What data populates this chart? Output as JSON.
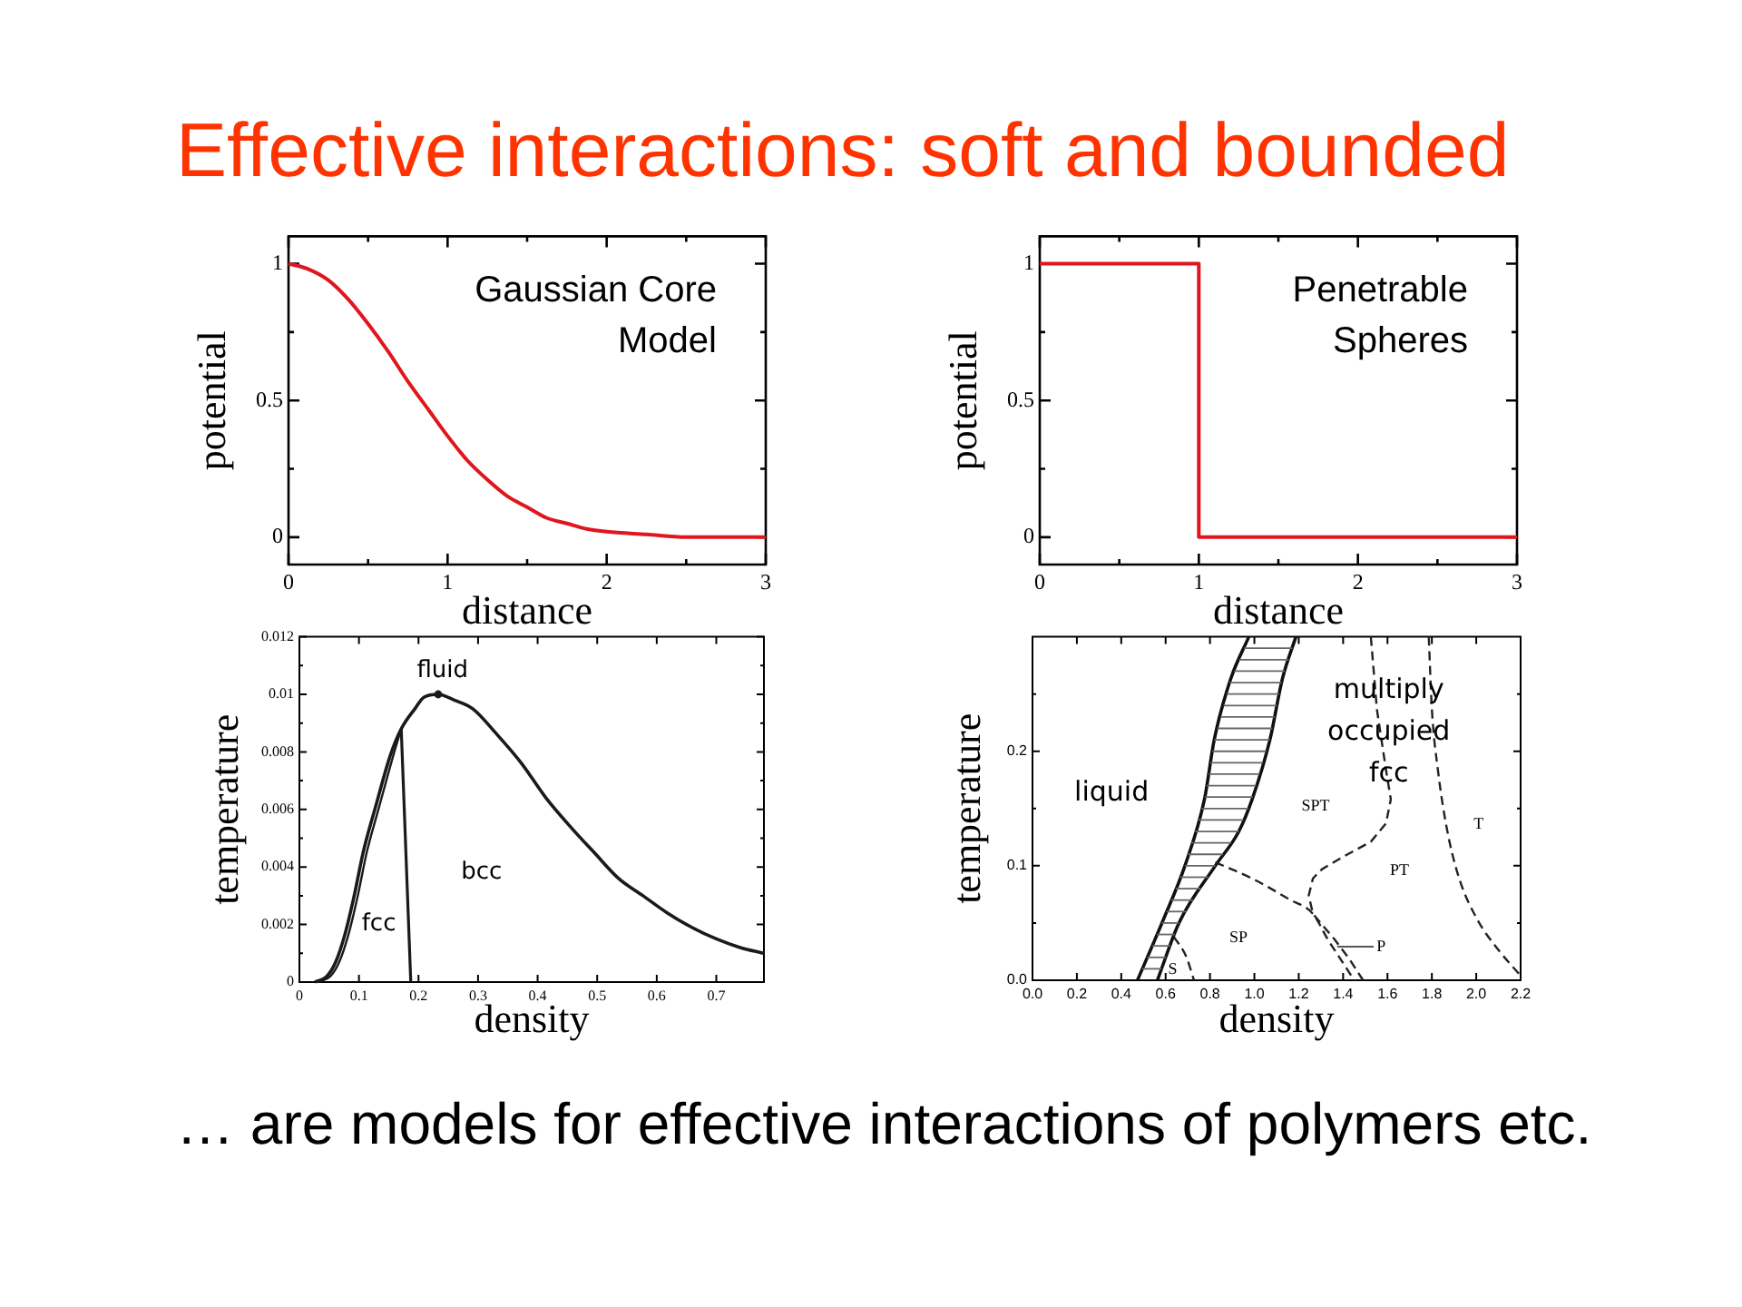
{
  "chart_data": [
    {
      "type": "other",
      "title": "Effective interactions: soft and bounded"
    },
    {
      "type": "line",
      "title": "Gaussian Core Model",
      "xlabel": "distance",
      "ylabel": "potential",
      "xlim": [
        0,
        3
      ],
      "ylim": [
        -0.1,
        1.1
      ],
      "xticks": [
        0,
        {
          "value": 0.5,
          "label": null
        },
        1,
        {
          "value": 1.5,
          "label": null
        },
        2,
        {
          "value": 2.5,
          "label": null
        },
        3
      ],
      "yticks": [
        0,
        {
          "value": 0.25,
          "label": null
        },
        0.5,
        {
          "value": 0.75,
          "label": null
        },
        1
      ],
      "marker": "none",
      "line_style": "solid",
      "x": [
        0,
        0.125,
        0.25,
        0.375,
        0.5,
        0.625,
        0.75,
        0.875,
        1,
        1.125,
        1.25,
        1.375,
        1.5,
        1.625,
        1.75,
        1.875,
        2,
        2.25,
        2.5,
        3
      ],
      "series": [
        {
          "color": "#e0161e",
          "values": [
            1,
            0.98,
            0.94,
            0.87,
            0.78,
            0.68,
            0.57,
            0.47,
            0.37,
            0.28,
            0.21,
            0.15,
            0.11,
            0.07,
            0.05,
            0.03,
            0.02,
            0.01,
            0,
            0
          ]
        }
      ]
    },
    {
      "type": "step",
      "title": "Penetrable Spheres",
      "xlabel": "distance",
      "ylabel": "potential",
      "xlim": [
        0,
        3
      ],
      "ylim": [
        -0.1,
        1.1
      ],
      "xticks": [
        0,
        {
          "value": 0.5,
          "label": null
        },
        1,
        {
          "value": 1.5,
          "label": null
        },
        2,
        {
          "value": 2.5,
          "label": null
        },
        3
      ],
      "yticks": [
        0,
        {
          "value": 0.25,
          "label": null
        },
        0.5,
        {
          "value": 0.75,
          "label": null
        },
        1
      ],
      "marker": "none",
      "line_style": "solid",
      "x": [
        0,
        1,
        3
      ],
      "series": [
        {
          "color": "#e0161e",
          "values": [
            1,
            0,
            0
          ]
        }
      ]
    },
    {
      "type": "line",
      "xlabel": "density",
      "ylabel": "temperature",
      "xlim": [
        0,
        0.78
      ],
      "ylim": [
        0,
        0.012
      ],
      "xticks": [
        0,
        0.1,
        0.2,
        0.3,
        0.4,
        0.5,
        0.6,
        0.7
      ],
      "yticks": [
        0,
        {
          "value": 0.001,
          "label": null
        },
        0.002,
        {
          "value": 0.003,
          "label": null
        },
        0.004,
        {
          "value": 0.005,
          "label": null
        },
        0.006,
        {
          "value": 0.007,
          "label": null
        },
        0.008,
        {
          "value": 0.009,
          "label": null
        },
        0.01,
        {
          "value": 0.011,
          "label": null
        },
        0.012
      ],
      "marker": "none",
      "line_style": "solid",
      "series": [
        {
          "color": "#1a1a1a",
          "x": [
            0.026,
            0.046,
            0.061,
            0.077,
            0.092,
            0.107,
            0.128,
            0.153,
            0.171,
            0.194,
            0.209,
            0.233,
            0.26,
            0.291,
            0.332,
            0.373,
            0.414,
            0.455,
            0.495,
            0.536,
            0.577,
            0.618,
            0.659,
            0.7,
            0.74,
            0.78
          ],
          "values": [
            0,
            0.0002,
            0.0007,
            0.0017,
            0.003,
            0.0045,
            0.0061,
            0.0079,
            0.0088,
            0.0095,
            0.0099,
            0.01,
            0.0098,
            0.0095,
            0.0086,
            0.0076,
            0.0064,
            0.0054,
            0.0045,
            0.0036,
            0.003,
            0.0024,
            0.0019,
            0.0015,
            0.0012,
            0.001
          ]
        },
        {
          "color": "#1a1a1a",
          "x": [
            0.032,
            0.052,
            0.067,
            0.083,
            0.098,
            0.113,
            0.134,
            0.158,
            0.171
          ],
          "values": [
            0,
            0.0002,
            0.0007,
            0.0017,
            0.003,
            0.0045,
            0.0061,
            0.0079,
            0.0088
          ]
        },
        {
          "color": "#1a1a1a",
          "x": [
            0.171,
            0.187
          ],
          "values": [
            0.0088,
            0
          ]
        },
        {
          "type": "scatter",
          "marker": "circle",
          "color": "#1a1a1a",
          "x": [
            0.233
          ],
          "values": [
            0.01
          ]
        }
      ],
      "annotations": [
        "fluid",
        "fcc",
        "bcc"
      ]
    },
    {
      "type": "line",
      "xlabel": "density",
      "ylabel": "temperature",
      "xlim": [
        0,
        2.2
      ],
      "ylim": [
        0,
        0.3
      ],
      "xticks": [
        {
          "value": 0,
          "label": "0.0"
        },
        0.2,
        0.4,
        0.6,
        0.8,
        {
          "value": 1,
          "label": "1.0"
        },
        1.2,
        1.4,
        1.6,
        1.8,
        {
          "value": 2,
          "label": "2.0"
        },
        2.2
      ],
      "yticks": [
        {
          "value": 0,
          "label": "0.0"
        },
        {
          "value": 0.05,
          "label": null
        },
        0.1,
        {
          "value": 0.15,
          "label": null
        },
        0.2,
        {
          "value": 0.25,
          "label": null
        }
      ],
      "marker": "none",
      "line_style": "solid",
      "series": [
        {
          "color": "#111111",
          "x": [
            0.473,
            0.59,
            0.687,
            0.775,
            0.819,
            0.893,
            0.975
          ],
          "values": [
            0,
            0.053,
            0.1,
            0.158,
            0.21,
            0.263,
            0.3
          ]
        },
        {
          "color": "#111111",
          "x": [
            0.563,
            0.66,
            0.824,
            0.93,
            0.99,
            1.07,
            1.126,
            1.187
          ],
          "values": [
            0,
            0.05,
            0.1,
            0.13,
            0.158,
            0.21,
            0.263,
            0.3
          ]
        },
        {
          "color": "#222222",
          "line_style": "dashed",
          "x": [
            0.824,
            0.989,
            1.154,
            1.264,
            1.33,
            1.39,
            1.45
          ],
          "values": [
            0.103,
            0.089,
            0.071,
            0.058,
            0.036,
            0.018,
            0
          ]
        },
        {
          "color": "#222222",
          "line_style": "dashed",
          "x": [
            1.525,
            1.552,
            1.593,
            1.615,
            1.593,
            1.525,
            1.401,
            1.305,
            1.264,
            1.245,
            1.264,
            1.36,
            1.43,
            1.49
          ],
          "values": [
            0.3,
            0.237,
            0.184,
            0.158,
            0.137,
            0.121,
            0.108,
            0.097,
            0.089,
            0.074,
            0.058,
            0.036,
            0.018,
            0
          ]
        },
        {
          "color": "#222222",
          "line_style": "dashed",
          "x": [
            1.786,
            1.8,
            1.827,
            1.868,
            1.923,
            2.005,
            2.102,
            2.2
          ],
          "values": [
            0.3,
            0.237,
            0.184,
            0.132,
            0.089,
            0.053,
            0.026,
            0.004
          ]
        },
        {
          "color": "#222222",
          "line_style": "dashed",
          "x": [
            0.637,
            0.692,
            0.728
          ],
          "values": [
            0.038,
            0.021,
            0
          ]
        },
        {
          "color": "#666666",
          "x": [
            0.495,
            0.582
          ],
          "values": [
            0.01,
            0.01
          ]
        },
        {
          "color": "#666666",
          "x": [
            0.517,
            0.602
          ],
          "values": [
            0.02,
            0.02
          ]
        },
        {
          "color": "#666666",
          "x": [
            0.539,
            0.621
          ],
          "values": [
            0.03,
            0.03
          ]
        },
        {
          "color": "#666666",
          "x": [
            0.561,
            0.641
          ],
          "values": [
            0.04,
            0.04
          ]
        },
        {
          "color": "#666666",
          "x": [
            0.583,
            0.66
          ],
          "values": [
            0.05,
            0.05
          ]
        },
        {
          "color": "#666666",
          "x": [
            0.604,
            0.693
          ],
          "values": [
            0.06,
            0.06
          ]
        },
        {
          "color": "#666666",
          "x": [
            0.625,
            0.726
          ],
          "values": [
            0.07,
            0.07
          ]
        },
        {
          "color": "#666666",
          "x": [
            0.646,
            0.758
          ],
          "values": [
            0.08,
            0.08
          ]
        },
        {
          "color": "#666666",
          "x": [
            0.666,
            0.791
          ],
          "values": [
            0.09,
            0.09
          ]
        },
        {
          "color": "#666666",
          "x": [
            0.687,
            0.824
          ],
          "values": [
            0.1,
            0.1
          ]
        },
        {
          "color": "#666666",
          "x": [
            0.702,
            0.859
          ],
          "values": [
            0.11,
            0.11
          ]
        },
        {
          "color": "#666666",
          "x": [
            0.717,
            0.895
          ],
          "values": [
            0.12,
            0.12
          ]
        },
        {
          "color": "#666666",
          "x": [
            0.733,
            0.93
          ],
          "values": [
            0.13,
            0.13
          ]
        },
        {
          "color": "#666666",
          "x": [
            0.748,
            0.951
          ],
          "values": [
            0.14,
            0.14
          ]
        },
        {
          "color": "#666666",
          "x": [
            0.763,
            0.973
          ],
          "values": [
            0.15,
            0.15
          ]
        },
        {
          "color": "#666666",
          "x": [
            0.777,
            0.993
          ],
          "values": [
            0.16,
            0.16
          ]
        },
        {
          "color": "#666666",
          "x": [
            0.785,
            1.008
          ],
          "values": [
            0.17,
            0.17
          ]
        },
        {
          "color": "#666666",
          "x": [
            0.794,
            1.024
          ],
          "values": [
            0.18,
            0.18
          ]
        },
        {
          "color": "#666666",
          "x": [
            0.802,
            1.039
          ],
          "values": [
            0.19,
            0.19
          ]
        },
        {
          "color": "#666666",
          "x": [
            0.811,
            1.054
          ],
          "values": [
            0.2,
            0.2
          ]
        },
        {
          "color": "#666666",
          "x": [
            0.819,
            1.07
          ],
          "values": [
            0.21,
            0.21
          ]
        },
        {
          "color": "#666666",
          "x": [
            0.833,
            1.081
          ],
          "values": [
            0.22,
            0.22
          ]
        },
        {
          "color": "#666666",
          "x": [
            0.847,
            1.091
          ],
          "values": [
            0.23,
            0.23
          ]
        },
        {
          "color": "#666666",
          "x": [
            0.861,
            1.102
          ],
          "values": [
            0.24,
            0.24
          ]
        },
        {
          "color": "#666666",
          "x": [
            0.875,
            1.112
          ],
          "values": [
            0.25,
            0.25
          ]
        },
        {
          "color": "#666666",
          "x": [
            0.889,
            1.123
          ],
          "values": [
            0.26,
            0.26
          ]
        },
        {
          "color": "#666666",
          "x": [
            0.909,
            1.138
          ],
          "values": [
            0.27,
            0.27
          ]
        },
        {
          "color": "#666666",
          "x": [
            0.931,
            1.154
          ],
          "values": [
            0.28,
            0.28
          ]
        },
        {
          "color": "#666666",
          "x": [
            0.953,
            1.171
          ],
          "values": [
            0.29,
            0.29
          ]
        }
      ],
      "annotations": [
        "liquid",
        "multiply occupied fcc",
        "SPT",
        "PT",
        "T",
        "SP",
        "S",
        "P"
      ]
    },
    {
      "type": "other",
      "annotations": [
        "… are models for effective interactions of polymers etc."
      ]
    }
  ]
}
